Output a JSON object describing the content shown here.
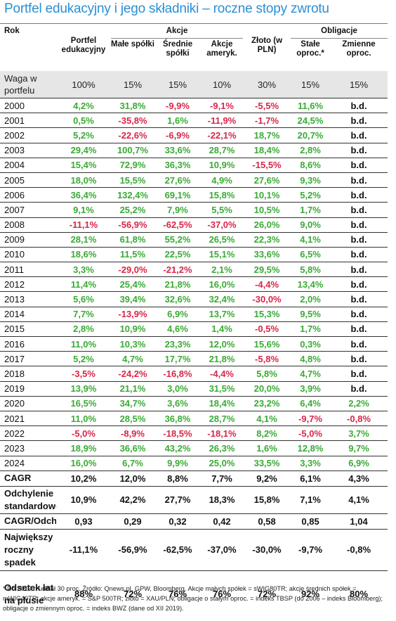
{
  "title": "Portfel edukacyjny i jego składniki – roczne stopy zwrotu",
  "headers": {
    "rok": "Rok",
    "portfel": "Portfel edukacyjny",
    "akcje": "Akcje",
    "obligacje": "Obligacje",
    "male": "Małe spółki",
    "srednie": "Średnie spółki",
    "amer": "Akcje ameryk.",
    "zloto": "Złoto (w PLN)",
    "stale": "Stałe oproc.*",
    "zmienne": "Zmienne oproc."
  },
  "weights": {
    "label": "Waga w portfelu",
    "values": [
      "100%",
      "15%",
      "15%",
      "10%",
      "30%",
      "15%",
      "15%"
    ]
  },
  "rows": [
    [
      "2000",
      "4,2%",
      "31,8%",
      "-9,9%",
      "-9,1%",
      "-5,5%",
      "11,6%",
      "b.d."
    ],
    [
      "2001",
      "0,5%",
      "-35,8%",
      "1,6%",
      "-11,9%",
      "-1,7%",
      "24,5%",
      "b.d."
    ],
    [
      "2002",
      "5,2%",
      "-22,6%",
      "-6,9%",
      "-22,1%",
      "18,7%",
      "20,7%",
      "b.d."
    ],
    [
      "2003",
      "29,4%",
      "100,7%",
      "33,6%",
      "28,7%",
      "18,4%",
      "2,8%",
      "b.d."
    ],
    [
      "2004",
      "15,4%",
      "72,9%",
      "36,3%",
      "10,9%",
      "-15,5%",
      "8,6%",
      "b.d."
    ],
    [
      "2005",
      "18,0%",
      "15,5%",
      "27,6%",
      "4,9%",
      "27,6%",
      "9,3%",
      "b.d."
    ],
    [
      "2006",
      "36,4%",
      "132,4%",
      "69,1%",
      "15,8%",
      "10,1%",
      "5,2%",
      "b.d."
    ],
    [
      "2007",
      "9,1%",
      "25,2%",
      "7,9%",
      "5,5%",
      "10,5%",
      "1,7%",
      "b.d."
    ],
    [
      "2008",
      "-11,1%",
      "-56,9%",
      "-62,5%",
      "-37,0%",
      "26,0%",
      "9,0%",
      "b.d."
    ],
    [
      "2009",
      "28,1%",
      "61,8%",
      "55,2%",
      "26,5%",
      "22,3%",
      "4,1%",
      "b.d."
    ],
    [
      "2010",
      "18,6%",
      "11,5%",
      "22,5%",
      "15,1%",
      "33,6%",
      "6,5%",
      "b.d."
    ],
    [
      "2011",
      "3,3%",
      "-29,0%",
      "-21,2%",
      "2,1%",
      "29,5%",
      "5,8%",
      "b.d."
    ],
    [
      "2012",
      "11,4%",
      "25,4%",
      "21,8%",
      "16,0%",
      "-4,4%",
      "13,4%",
      "b.d."
    ],
    [
      "2013",
      "5,6%",
      "39,4%",
      "32,6%",
      "32,4%",
      "-30,0%",
      "2,0%",
      "b.d."
    ],
    [
      "2014",
      "7,7%",
      "-13,9%",
      "6,9%",
      "13,7%",
      "15,3%",
      "9,5%",
      "b.d."
    ],
    [
      "2015",
      "2,8%",
      "10,9%",
      "4,6%",
      "1,4%",
      "-0,5%",
      "1,7%",
      "b.d."
    ],
    [
      "2016",
      "11,0%",
      "10,3%",
      "23,3%",
      "12,0%",
      "15,6%",
      "0,3%",
      "b.d."
    ],
    [
      "2017",
      "5,2%",
      "4,7%",
      "17,7%",
      "21,8%",
      "-5,8%",
      "4,8%",
      "b.d."
    ],
    [
      "2018",
      "-3,5%",
      "-24,2%",
      "-16,8%",
      "-4,4%",
      "5,8%",
      "4,7%",
      "b.d."
    ],
    [
      "2019",
      "13,9%",
      "21,1%",
      "3,0%",
      "31,5%",
      "20,0%",
      "3,9%",
      "b.d."
    ],
    [
      "2020",
      "16,5%",
      "34,7%",
      "3,6%",
      "18,4%",
      "23,2%",
      "6,4%",
      "2,2%"
    ],
    [
      "2021",
      "11,0%",
      "28,5%",
      "36,8%",
      "28,7%",
      "4,1%",
      "-9,7%",
      "-0,8%"
    ],
    [
      "2022",
      "-5,0%",
      "-8,9%",
      "-18,5%",
      "-18,1%",
      "8,2%",
      "-5,0%",
      "3,7%"
    ],
    [
      "2023",
      "18,9%",
      "36,6%",
      "43,2%",
      "26,3%",
      "1,6%",
      "12,8%",
      "9,7%"
    ],
    [
      "2024",
      "16,0%",
      "6,7%",
      "9,9%",
      "25,0%",
      "33,5%",
      "3,3%",
      "6,9%"
    ]
  ],
  "summary": [
    {
      "label": "CAGR",
      "values": [
        "10,2%",
        "12,0%",
        "8,8%",
        "7,7%",
        "9,2%",
        "6,1%",
        "4,3%"
      ]
    },
    {
      "label": "Odchylenie standardowe",
      "values": [
        "10,9%",
        "42,2%",
        "27,7%",
        "18,3%",
        "15,8%",
        "7,1%",
        "4,1%"
      ]
    },
    {
      "label": "CAGR/Odch.",
      "values": [
        "0,93",
        "0,29",
        "0,32",
        "0,42",
        "0,58",
        "0,85",
        "1,04"
      ]
    },
    {
      "label": "Największy roczny spadek",
      "values": [
        "-11,1%",
        "-56,9%",
        "-62,5%",
        "-37,0%",
        "-30,0%",
        "-9,7%",
        "-0,8%"
      ]
    },
    {
      "label": "Odsetek lat na plusie",
      "values": [
        "88%",
        "72%",
        "76%",
        "76%",
        "72%",
        "92%",
        "80%"
      ]
    }
  ],
  "footnote": "* Do 2019 r. udział 30 proc. Źródło: Qnews.pl, GPW, Bloomberg. Akcje małych spółek = sWIG80TR; akcje średnich spółek = mWIG40TR; akcje ameryk. = S&P 500TR; złoto = XAU/PLN; obligacje o stałym oproc. = indeks TBSP (do 2006 – indeks Bloomberg); obligacje o zmiennym oproc. = indeks BWZ (dane od XII 2019).",
  "colors": {
    "title": "#2a8fd4",
    "positive": "#3aaa35",
    "negative": "#d9254a",
    "weight_row_bg": "#e6e6e6"
  }
}
